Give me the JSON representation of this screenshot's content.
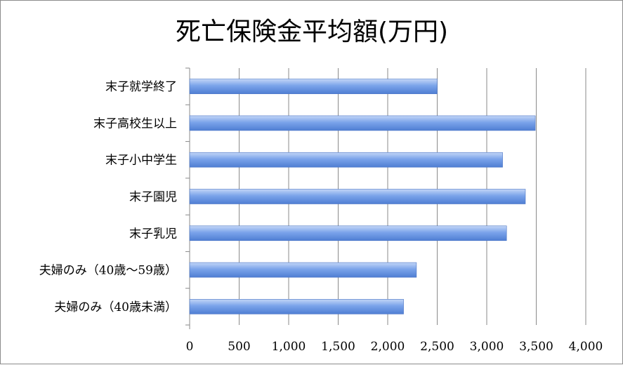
{
  "chart_data": {
    "type": "bar",
    "orientation": "horizontal",
    "title": "死亡保険金平均額(万円)",
    "categories": [
      "末子就学終了",
      "末子高校生以上",
      "末子小中学生",
      "末子園児",
      "末子乳児",
      "夫婦のみ（40歳〜59歳）",
      "夫婦のみ（40歳未満）"
    ],
    "values": [
      2500,
      3490,
      3160,
      3390,
      3200,
      2290,
      2160
    ],
    "xlim": [
      0,
      4000
    ],
    "xticks": [
      0,
      500,
      1000,
      1500,
      2000,
      2500,
      3000,
      3500,
      4000
    ],
    "xtick_labels": [
      "0",
      "500",
      "1,000",
      "1,500",
      "2,000",
      "2,500",
      "3,000",
      "3,500",
      "4,000"
    ],
    "grid": true,
    "legend": false,
    "colors": {
      "bar_light": "#b9d0f5",
      "bar_mid": "#6e9be6",
      "bar_dark": "#4a78cf"
    }
  }
}
